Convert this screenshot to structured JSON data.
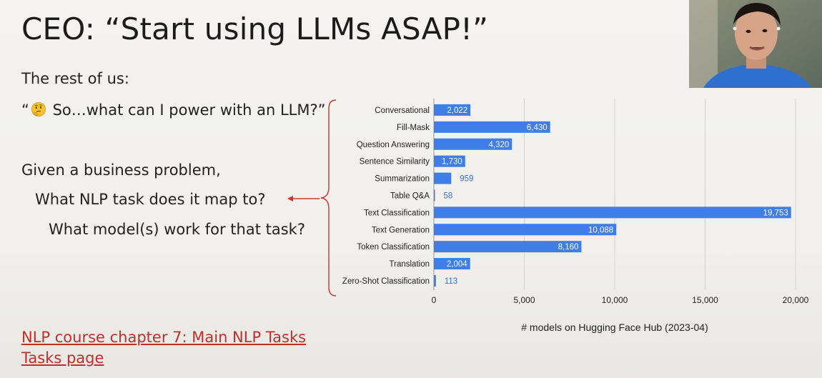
{
  "slide": {
    "title": "CEO: “Start using LLMs ASAP!”",
    "intro": "The rest of us:",
    "quote_open": "“",
    "quote_rest": " So…what can I power with an LLM?”",
    "emoji_icon": "thinking-face-icon",
    "given": "Given a business problem,",
    "question1": "What NLP task does it map to?",
    "question2": "What model(s) work for that task?",
    "link1": "NLP course chapter 7: Main NLP Tasks",
    "link2": "Tasks page",
    "accent_color": "#c22f2a"
  },
  "chart_data": {
    "type": "bar",
    "orientation": "horizontal",
    "categories": [
      "Conversational",
      "Fill-Mask",
      "Question Answering",
      "Sentence Similarity",
      "Summarization",
      "Table Q&A",
      "Text Classification",
      "Text Generation",
      "Token Classification",
      "Translation",
      "Zero-Shot Classification"
    ],
    "values": [
      2022,
      6430,
      4320,
      1730,
      959,
      58,
      19753,
      10088,
      8160,
      2004,
      113
    ],
    "value_labels": [
      "2,022",
      "6,430",
      "4,320",
      "1,730",
      "959",
      "58",
      "19,753",
      "10,088",
      "8,160",
      "2,004",
      "113"
    ],
    "xlabel": "# models on Hugging Face Hub (2023-04)",
    "xlim": [
      0,
      20000
    ],
    "xticks": [
      0,
      5000,
      10000,
      15000,
      20000
    ],
    "xtick_labels": [
      "0",
      "5,000",
      "10,000",
      "15,000",
      "20,000"
    ],
    "grid": true,
    "bar_color": "#3f7ee8"
  }
}
